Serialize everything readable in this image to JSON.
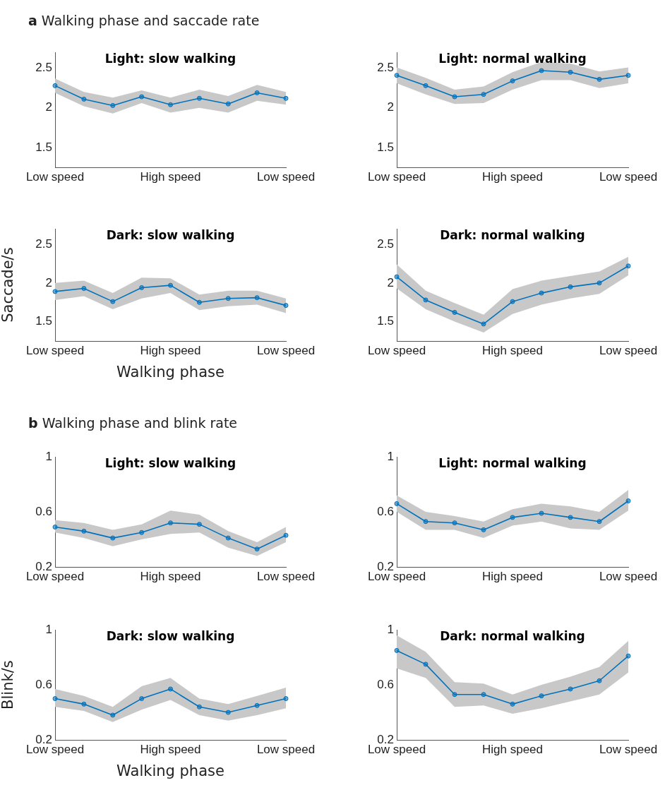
{
  "chart_data": [
    {
      "type": "line",
      "title": "Light: slow walking",
      "annotations": [
        "a Walking phase and saccade rate"
      ],
      "categories": [
        "Low speed",
        null,
        null,
        null,
        "High speed",
        null,
        null,
        null,
        "Low speed"
      ],
      "ylim": [
        1.25,
        2.7
      ],
      "yticks": [
        1.5,
        2,
        2.5
      ],
      "grid": false,
      "marker": "circle",
      "series": [
        {
          "color": "#0072bd",
          "values": [
            2.28,
            2.11,
            2.03,
            2.14,
            2.04,
            2.12,
            2.05,
            2.19,
            2.12
          ],
          "lower": [
            2.19,
            2.02,
            1.93,
            2.06,
            1.94,
            2.0,
            1.94,
            2.09,
            2.04
          ],
          "upper": [
            2.37,
            2.2,
            2.13,
            2.22,
            2.13,
            2.23,
            2.15,
            2.29,
            2.2
          ]
        }
      ]
    },
    {
      "type": "line",
      "title": "Light: normal walking",
      "categories": [
        "Low speed",
        null,
        null,
        null,
        "High speed",
        null,
        null,
        null,
        "Low speed"
      ],
      "ylim": [
        1.25,
        2.7
      ],
      "yticks": [
        1.5,
        2,
        2.5
      ],
      "grid": false,
      "marker": "circle",
      "series": [
        {
          "color": "#0072bd",
          "values": [
            2.41,
            2.28,
            2.14,
            2.17,
            2.34,
            2.47,
            2.45,
            2.36,
            2.41
          ],
          "lower": [
            2.31,
            2.17,
            2.05,
            2.06,
            2.23,
            2.35,
            2.35,
            2.25,
            2.31
          ],
          "upper": [
            2.51,
            2.38,
            2.23,
            2.27,
            2.45,
            2.58,
            2.56,
            2.46,
            2.51
          ]
        }
      ]
    },
    {
      "type": "line",
      "title": "Dark: slow walking",
      "xlabel": "Walking phase",
      "ylabel": "Saccade/s",
      "categories": [
        "Low speed",
        null,
        null,
        null,
        "High speed",
        null,
        null,
        null,
        "Low speed"
      ],
      "ylim": [
        1.25,
        2.7
      ],
      "yticks": [
        1.5,
        2,
        2.5
      ],
      "grid": false,
      "marker": "circle",
      "series": [
        {
          "color": "#0072bd",
          "values": [
            1.89,
            1.93,
            1.76,
            1.94,
            1.97,
            1.75,
            1.8,
            1.81,
            1.71
          ],
          "lower": [
            1.78,
            1.83,
            1.66,
            1.8,
            1.87,
            1.65,
            1.7,
            1.72,
            1.61
          ],
          "upper": [
            2.0,
            2.03,
            1.87,
            2.07,
            2.06,
            1.85,
            1.9,
            1.9,
            1.8
          ]
        }
      ]
    },
    {
      "type": "line",
      "title": "Dark: normal walking",
      "categories": [
        "Low speed",
        null,
        null,
        null,
        "High speed",
        null,
        null,
        null,
        "Low speed"
      ],
      "ylim": [
        1.25,
        2.7
      ],
      "yticks": [
        1.5,
        2,
        2.5
      ],
      "grid": false,
      "marker": "circle",
      "series": [
        {
          "color": "#0072bd",
          "values": [
            2.08,
            1.78,
            1.62,
            1.47,
            1.76,
            1.87,
            1.95,
            2.0,
            2.22
          ],
          "lower": [
            1.93,
            1.66,
            1.5,
            1.36,
            1.6,
            1.72,
            1.8,
            1.86,
            2.1
          ],
          "upper": [
            2.24,
            1.9,
            1.74,
            1.59,
            1.92,
            2.03,
            2.09,
            2.15,
            2.34
          ]
        }
      ]
    },
    {
      "type": "line",
      "title": "Light: slow walking",
      "annotations": [
        "b Walking phase and blink rate"
      ],
      "categories": [
        "Low speed",
        null,
        null,
        null,
        "High speed",
        null,
        null,
        null,
        "Low speed"
      ],
      "ylim": [
        0.2,
        1
      ],
      "yticks": [
        0.2,
        0.6,
        1
      ],
      "grid": false,
      "marker": "circle",
      "series": [
        {
          "color": "#0072bd",
          "values": [
            0.49,
            0.46,
            0.41,
            0.45,
            0.52,
            0.51,
            0.41,
            0.33,
            0.43
          ],
          "lower": [
            0.45,
            0.41,
            0.35,
            0.4,
            0.44,
            0.45,
            0.34,
            0.28,
            0.38
          ],
          "upper": [
            0.54,
            0.52,
            0.47,
            0.51,
            0.61,
            0.58,
            0.46,
            0.38,
            0.49
          ]
        }
      ]
    },
    {
      "type": "line",
      "title": "Light: normal walking",
      "categories": [
        "Low speed",
        null,
        null,
        null,
        "High speed",
        null,
        null,
        null,
        "Low speed"
      ],
      "ylim": [
        0.2,
        1
      ],
      "yticks": [
        0.2,
        0.6,
        1
      ],
      "grid": false,
      "marker": "circle",
      "series": [
        {
          "color": "#0072bd",
          "values": [
            0.66,
            0.53,
            0.52,
            0.47,
            0.56,
            0.59,
            0.56,
            0.53,
            0.68
          ],
          "lower": [
            0.6,
            0.47,
            0.47,
            0.41,
            0.5,
            0.53,
            0.48,
            0.47,
            0.61
          ],
          "upper": [
            0.72,
            0.6,
            0.57,
            0.53,
            0.62,
            0.66,
            0.64,
            0.6,
            0.76
          ]
        }
      ]
    },
    {
      "type": "line",
      "title": "Dark: slow walking",
      "xlabel": "Walking phase",
      "ylabel": "Blink/s",
      "categories": [
        "Low speed",
        null,
        null,
        null,
        "High speed",
        null,
        null,
        null,
        "Low speed"
      ],
      "ylim": [
        0.2,
        1
      ],
      "yticks": [
        0.2,
        0.6,
        1
      ],
      "grid": false,
      "marker": "circle",
      "series": [
        {
          "color": "#0072bd",
          "values": [
            0.5,
            0.46,
            0.38,
            0.5,
            0.57,
            0.44,
            0.4,
            0.45,
            0.5
          ],
          "lower": [
            0.44,
            0.41,
            0.33,
            0.42,
            0.49,
            0.38,
            0.34,
            0.38,
            0.43
          ],
          "upper": [
            0.57,
            0.52,
            0.44,
            0.59,
            0.65,
            0.5,
            0.46,
            0.52,
            0.58
          ]
        }
      ]
    },
    {
      "type": "line",
      "title": "Dark: normal walking",
      "categories": [
        "Low speed",
        null,
        null,
        null,
        "High speed",
        null,
        null,
        null,
        "Low speed"
      ],
      "ylim": [
        0.2,
        1
      ],
      "yticks": [
        0.2,
        0.6,
        1
      ],
      "grid": false,
      "marker": "circle",
      "series": [
        {
          "color": "#0072bd",
          "values": [
            0.85,
            0.75,
            0.53,
            0.53,
            0.46,
            0.52,
            0.57,
            0.63,
            0.81
          ],
          "lower": [
            0.72,
            0.65,
            0.44,
            0.45,
            0.39,
            0.43,
            0.48,
            0.53,
            0.69
          ],
          "upper": [
            0.96,
            0.84,
            0.62,
            0.61,
            0.53,
            0.6,
            0.66,
            0.73,
            0.92
          ]
        }
      ]
    }
  ]
}
